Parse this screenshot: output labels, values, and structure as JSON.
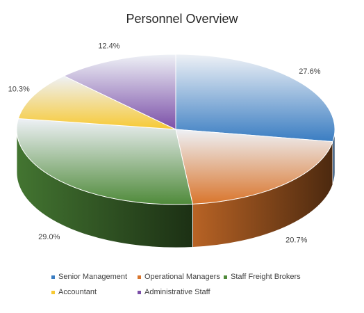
{
  "chart_data": {
    "type": "pie",
    "title": "Personnel Overview",
    "categories": [
      "Senior Management",
      "Operational Managers",
      "Staff Freight Brokers",
      "Accountant",
      "Administrative Staff"
    ],
    "values": [
      27.6,
      20.7,
      29.0,
      10.3,
      12.4
    ],
    "value_labels": [
      "27.6%",
      "20.7%",
      "29.0%",
      "10.3%",
      "12.4%"
    ],
    "colors": [
      "#3a7dc2",
      "#d9752c",
      "#4f8a3a",
      "#f7c933",
      "#7b4fa8"
    ],
    "style": "3d",
    "legend": "bottom"
  }
}
